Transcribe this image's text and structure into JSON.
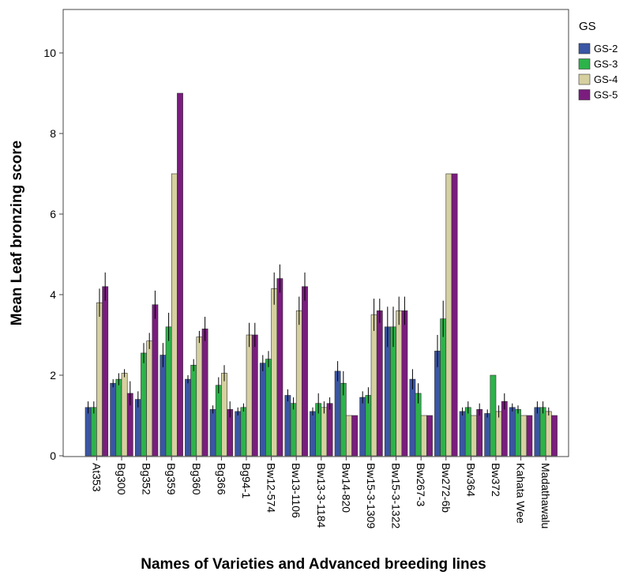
{
  "chart_data": {
    "type": "bar",
    "ylabel": "Mean Leaf bronzing score",
    "xlabel": "Names of Varieties and Advanced breeding lines",
    "ylim": [
      0,
      11
    ],
    "yticks": [
      0,
      2,
      4,
      6,
      8,
      10
    ],
    "grid": false,
    "legend": {
      "title": "GS",
      "placement": "right"
    },
    "categories": [
      "At353",
      "Bg300",
      "Bg352",
      "Bg359",
      "Bg360",
      "Bg366",
      "Bg94-1",
      "Bw12-574",
      "Bw13-1106",
      "Bw13-3-1184",
      "Bw14-820",
      "Bw15-3-1309",
      "Bw15-3-1322",
      "Bw267-3",
      "Bw272-6b",
      "Bw364",
      "Bw372",
      "Kahata Wee",
      "Madathawalu"
    ],
    "series": [
      {
        "name": "GS-2",
        "color": "#3a56a4",
        "values": [
          1.2,
          1.8,
          1.4,
          2.5,
          1.9,
          1.15,
          1.1,
          2.3,
          1.5,
          1.1,
          2.1,
          1.45,
          3.2,
          1.9,
          2.6,
          1.1,
          1.05,
          1.2,
          1.2
        ],
        "err": [
          0.15,
          0.1,
          0.2,
          0.3,
          0.1,
          0.1,
          0.1,
          0.2,
          0.15,
          0.1,
          0.25,
          0.15,
          0.5,
          0.25,
          0.4,
          0.1,
          0.1,
          0.1,
          0.15
        ]
      },
      {
        "name": "GS-3",
        "color": "#2db34a",
        "values": [
          1.2,
          1.9,
          2.55,
          3.2,
          2.25,
          1.75,
          1.2,
          2.4,
          1.3,
          1.3,
          1.8,
          1.5,
          3.2,
          1.55,
          3.4,
          1.2,
          2.0,
          1.15,
          1.2
        ],
        "err": [
          0.15,
          0.15,
          0.25,
          0.35,
          0.15,
          0.2,
          0.1,
          0.2,
          0.15,
          0.25,
          0.3,
          0.2,
          0.5,
          0.25,
          0.45,
          0.15,
          0.0,
          0.1,
          0.15
        ]
      },
      {
        "name": "GS-4",
        "color": "#d6d0a0",
        "values": [
          3.8,
          2.05,
          2.85,
          7.0,
          2.95,
          2.05,
          3.0,
          4.15,
          3.6,
          1.2,
          1.0,
          3.5,
          3.6,
          1.0,
          7.0,
          1.0,
          1.1,
          1.0,
          1.1
        ],
        "err": [
          0.35,
          0.1,
          0.2,
          0.0,
          0.15,
          0.2,
          0.3,
          0.4,
          0.35,
          0.15,
          0.0,
          0.4,
          0.35,
          0.0,
          0.0,
          0.0,
          0.15,
          0.0,
          0.1
        ]
      },
      {
        "name": "GS-5",
        "color": "#7a1d7e",
        "values": [
          4.2,
          1.55,
          3.75,
          9.0,
          3.15,
          1.15,
          3.0,
          4.4,
          4.2,
          1.3,
          1.0,
          3.6,
          3.6,
          1.0,
          7.0,
          1.15,
          1.35,
          1.0,
          1.0
        ],
        "err": [
          0.35,
          0.3,
          0.35,
          0.0,
          0.3,
          0.2,
          0.3,
          0.35,
          0.35,
          0.15,
          0.0,
          0.3,
          0.35,
          0.0,
          0.0,
          0.15,
          0.2,
          0.0,
          0.0
        ]
      }
    ]
  }
}
